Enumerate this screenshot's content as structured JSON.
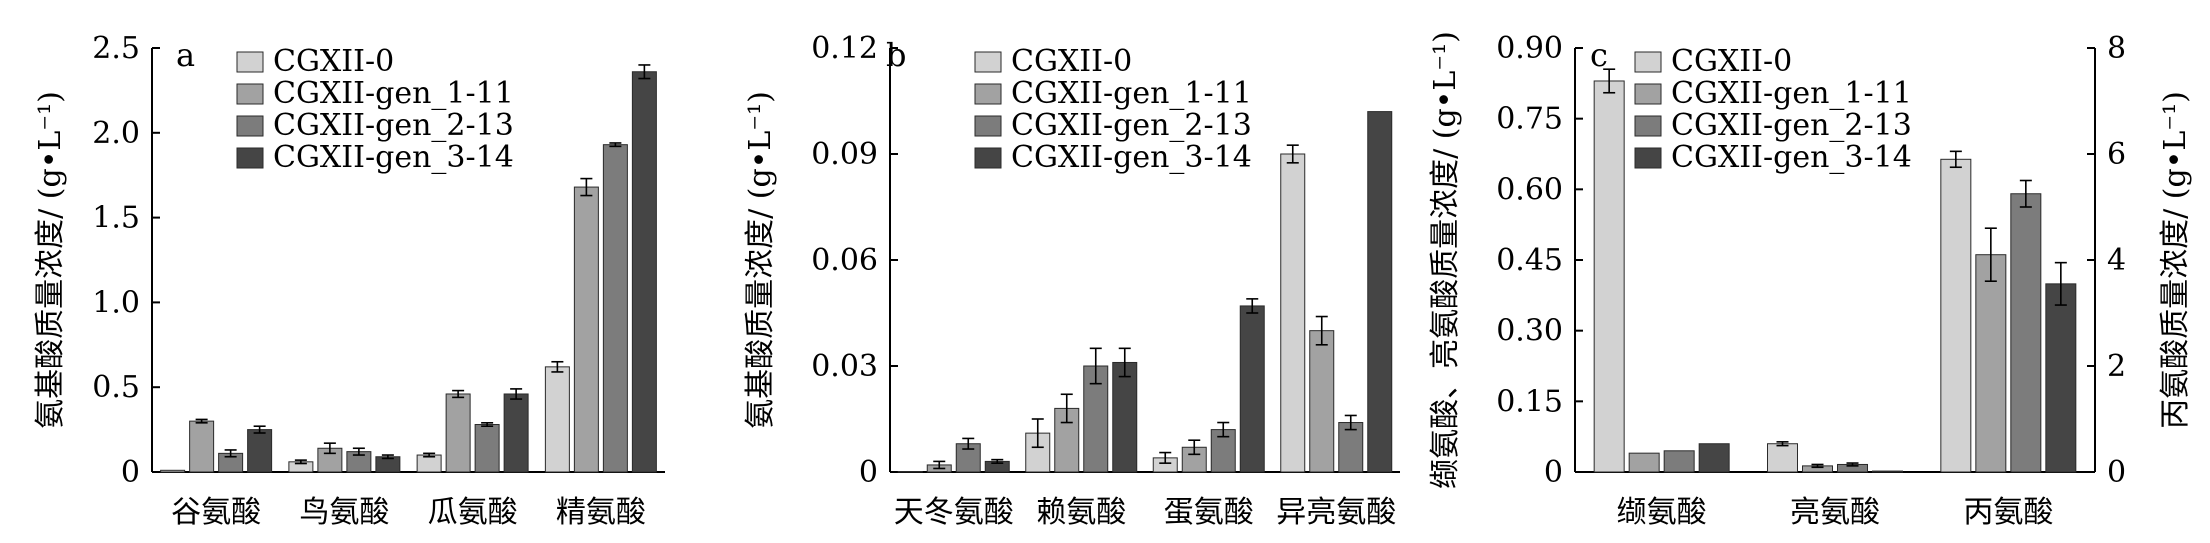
{
  "legend": [
    "CGXII-0",
    "CGXII-gen_1-11",
    "CGXII-gen_2-13",
    "CGXII-gen_3-14"
  ],
  "series_colors": [
    "#d2d2d2",
    "#a2a2a2",
    "#7c7c7c",
    "#454545"
  ],
  "chart_data": [
    {
      "type": "bar",
      "panel_label": "a",
      "ylabel": "氨基酸质量浓度/ (g•L⁻¹)",
      "ylim": [
        0,
        2.5
      ],
      "yticks": [
        "0",
        "0.5",
        "1.0",
        "1.5",
        "2.0",
        "2.5"
      ],
      "legend_position": "top-left",
      "categories": [
        "谷氨酸",
        "鸟氨酸",
        "瓜氨酸",
        "精氨酸"
      ],
      "series": [
        {
          "name": "CGXII-0",
          "values": [
            0.01,
            0.06,
            0.1,
            0.62
          ],
          "errors": [
            0.0,
            0.01,
            0.01,
            0.03
          ]
        },
        {
          "name": "CGXII-gen_1-11",
          "values": [
            0.3,
            0.14,
            0.46,
            1.68
          ],
          "errors": [
            0.01,
            0.03,
            0.02,
            0.05
          ]
        },
        {
          "name": "CGXII-gen_2-13",
          "values": [
            0.11,
            0.12,
            0.28,
            1.93
          ],
          "errors": [
            0.02,
            0.02,
            0.01,
            0.01
          ]
        },
        {
          "name": "CGXII-gen_3-14",
          "values": [
            0.25,
            0.09,
            0.46,
            2.36
          ],
          "errors": [
            0.02,
            0.01,
            0.03,
            0.04
          ]
        }
      ]
    },
    {
      "type": "bar",
      "panel_label": "b",
      "ylabel": "氨基酸质量浓度/ (g•L⁻¹)",
      "ylim": [
        0,
        0.12
      ],
      "yticks": [
        "0",
        "0.03",
        "0.06",
        "0.09",
        "0.12"
      ],
      "legend_position": "top-left",
      "categories": [
        "天冬氨酸",
        "赖氨酸",
        "蛋氨酸",
        "异亮氨酸"
      ],
      "series": [
        {
          "name": "CGXII-0",
          "values": [
            0.0,
            0.011,
            0.004,
            0.09
          ],
          "errors": [
            0.0,
            0.004,
            0.0015,
            0.0025
          ]
        },
        {
          "name": "CGXII-gen_1-11",
          "values": [
            0.002,
            0.018,
            0.007,
            0.04
          ],
          "errors": [
            0.001,
            0.004,
            0.002,
            0.004
          ]
        },
        {
          "name": "CGXII-gen_2-13",
          "values": [
            0.008,
            0.03,
            0.012,
            0.014
          ],
          "errors": [
            0.0015,
            0.005,
            0.002,
            0.002
          ]
        },
        {
          "name": "CGXII-gen_3-14",
          "values": [
            0.003,
            0.031,
            0.047,
            0.102
          ],
          "errors": [
            0.0005,
            0.004,
            0.002,
            0.0
          ]
        }
      ]
    },
    {
      "type": "bar",
      "panel_label": "c",
      "ylabel": "缬氨酸、亮氨酸质量浓度/ (g•L⁻¹)",
      "ylabel_right": "丙氨酸质量浓度/ (g•L⁻¹)",
      "ylim": [
        0,
        0.9
      ],
      "ylim_right": [
        0,
        8
      ],
      "yticks": [
        "0",
        "0.15",
        "0.30",
        "0.45",
        "0.60",
        "0.75",
        "0.90"
      ],
      "yticks_right": [
        "0",
        "2",
        "4",
        "6",
        "8"
      ],
      "legend_position": "top-center",
      "categories": [
        "缬氨酸",
        "亮氨酸",
        "丙氨酸"
      ],
      "series_axis_by_category": [
        "left",
        "left",
        "right"
      ],
      "series": [
        {
          "name": "CGXII-0",
          "values": [
            0.83,
            0.06,
            5.9
          ],
          "errors": [
            0.025,
            0.004,
            0.15
          ]
        },
        {
          "name": "CGXII-gen_1-11",
          "values": [
            0.04,
            0.013,
            4.1
          ],
          "errors": [
            0.0,
            0.003,
            0.5
          ]
        },
        {
          "name": "CGXII-gen_2-13",
          "values": [
            0.045,
            0.016,
            5.25
          ],
          "errors": [
            0.0,
            0.003,
            0.25
          ]
        },
        {
          "name": "CGXII-gen_3-14",
          "values": [
            0.06,
            0.002,
            3.55
          ],
          "errors": [
            0.0,
            0.0,
            0.4
          ]
        }
      ]
    }
  ]
}
